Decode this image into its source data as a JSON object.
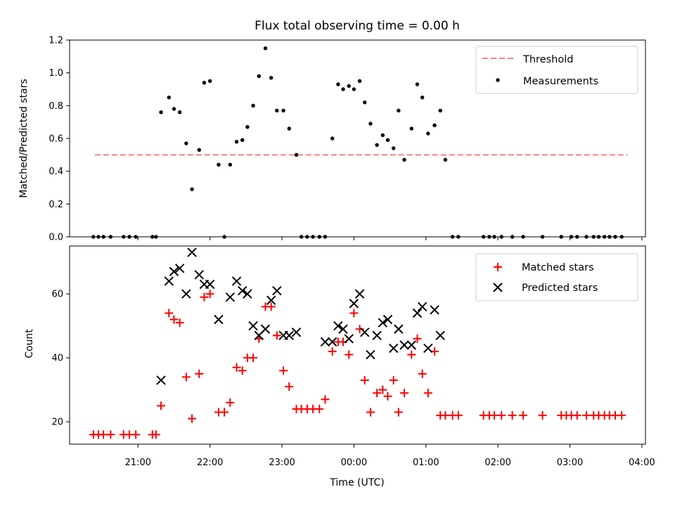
{
  "chart_data": [
    {
      "type": "scatter",
      "title": "Flux total observing time = 0.00 h",
      "ylabel": "Matched/Predicted stars",
      "xlabel": "",
      "xlim": [
        20.05,
        28.05
      ],
      "ylim": [
        0,
        1.2
      ],
      "yticks": [
        0,
        0.2,
        0.4,
        0.6,
        0.8,
        1.0,
        1.2
      ],
      "ytick_labels": [
        "0.0",
        "0.2",
        "0.4",
        "0.6",
        "0.8",
        "1.0",
        "1.2"
      ],
      "xticks": [
        21,
        22,
        23,
        24,
        25,
        26,
        27,
        28
      ],
      "grid": false,
      "legend_position": "top-right",
      "threshold": {
        "name": "Threshold",
        "value": 0.5,
        "x_range": [
          20.4,
          27.8
        ],
        "color": "#ff7f7f"
      },
      "measurements": {
        "name": "Measurements",
        "color": "#000000",
        "points": [
          [
            20.38,
            0
          ],
          [
            20.45,
            0
          ],
          [
            20.52,
            0
          ],
          [
            20.62,
            0
          ],
          [
            20.8,
            0
          ],
          [
            20.88,
            0
          ],
          [
            20.97,
            0
          ],
          [
            21.2,
            0
          ],
          [
            21.25,
            0
          ],
          [
            21.32,
            0.76
          ],
          [
            21.43,
            0.85
          ],
          [
            21.5,
            0.78
          ],
          [
            21.58,
            0.76
          ],
          [
            21.67,
            0.57
          ],
          [
            21.75,
            0.29
          ],
          [
            21.85,
            0.53
          ],
          [
            21.92,
            0.94
          ],
          [
            22.0,
            0.95
          ],
          [
            22.12,
            0.44
          ],
          [
            22.2,
            0
          ],
          [
            22.28,
            0.44
          ],
          [
            22.37,
            0.58
          ],
          [
            22.45,
            0.59
          ],
          [
            22.52,
            0.67
          ],
          [
            22.6,
            0.8
          ],
          [
            22.68,
            0.98
          ],
          [
            22.77,
            1.15
          ],
          [
            22.85,
            0.97
          ],
          [
            22.93,
            0.77
          ],
          [
            23.02,
            0.77
          ],
          [
            23.1,
            0.66
          ],
          [
            23.2,
            0.5
          ],
          [
            23.27,
            0
          ],
          [
            23.35,
            0
          ],
          [
            23.43,
            0
          ],
          [
            23.52,
            0
          ],
          [
            23.6,
            0
          ],
          [
            23.7,
            0.6
          ],
          [
            23.78,
            0.93
          ],
          [
            23.85,
            0.9
          ],
          [
            23.93,
            0.92
          ],
          [
            24.0,
            0.9
          ],
          [
            24.08,
            0.95
          ],
          [
            24.15,
            0.82
          ],
          [
            24.23,
            0.69
          ],
          [
            24.32,
            0.56
          ],
          [
            24.4,
            0.62
          ],
          [
            24.47,
            0.59
          ],
          [
            24.55,
            0.54
          ],
          [
            24.62,
            0.77
          ],
          [
            24.7,
            0.47
          ],
          [
            24.8,
            0.66
          ],
          [
            24.88,
            0.93
          ],
          [
            24.95,
            0.85
          ],
          [
            25.03,
            0.63
          ],
          [
            25.12,
            0.68
          ],
          [
            25.2,
            0.77
          ],
          [
            25.27,
            0.47
          ],
          [
            25.37,
            0
          ],
          [
            25.45,
            0
          ],
          [
            25.8,
            0
          ],
          [
            25.88,
            0
          ],
          [
            25.95,
            0
          ],
          [
            26.05,
            0
          ],
          [
            26.2,
            0
          ],
          [
            26.35,
            0
          ],
          [
            26.62,
            0
          ],
          [
            26.88,
            0
          ],
          [
            27.02,
            0
          ],
          [
            27.1,
            0
          ],
          [
            27.23,
            0
          ],
          [
            27.33,
            0
          ],
          [
            27.4,
            0
          ],
          [
            27.48,
            0
          ],
          [
            27.55,
            0
          ],
          [
            27.63,
            0
          ],
          [
            27.72,
            0
          ]
        ]
      }
    },
    {
      "type": "scatter",
      "title": "",
      "ylabel": "Count",
      "xlabel": "Time (UTC)",
      "xlim": [
        20.05,
        28.05
      ],
      "ylim": [
        13,
        75
      ],
      "yticks": [
        20,
        40,
        60
      ],
      "ytick_labels": [
        "20",
        "40",
        "60"
      ],
      "xticks": [
        21,
        22,
        23,
        24,
        25,
        26,
        27,
        28
      ],
      "xtick_labels": [
        "21:00",
        "22:00",
        "23:00",
        "00:00",
        "01:00",
        "02:00",
        "03:00",
        "04:00"
      ],
      "grid": false,
      "legend_position": "top-right",
      "series": [
        {
          "name": "Matched stars",
          "marker": "plus",
          "color": "#ff0000",
          "points": [
            [
              20.38,
              16
            ],
            [
              20.45,
              16
            ],
            [
              20.52,
              16
            ],
            [
              20.62,
              16
            ],
            [
              20.8,
              16
            ],
            [
              20.88,
              16
            ],
            [
              20.97,
              16
            ],
            [
              21.2,
              16
            ],
            [
              21.25,
              16
            ],
            [
              21.32,
              25
            ],
            [
              21.43,
              54
            ],
            [
              21.5,
              52
            ],
            [
              21.58,
              51
            ],
            [
              21.67,
              34
            ],
            [
              21.75,
              21
            ],
            [
              21.85,
              35
            ],
            [
              21.92,
              59
            ],
            [
              22.0,
              60
            ],
            [
              22.12,
              23
            ],
            [
              22.2,
              23
            ],
            [
              22.28,
              26
            ],
            [
              22.37,
              37
            ],
            [
              22.45,
              36
            ],
            [
              22.52,
              40
            ],
            [
              22.6,
              40
            ],
            [
              22.68,
              46
            ],
            [
              22.77,
              56
            ],
            [
              22.85,
              56
            ],
            [
              22.93,
              47
            ],
            [
              23.02,
              36
            ],
            [
              23.1,
              31
            ],
            [
              23.2,
              24
            ],
            [
              23.27,
              24
            ],
            [
              23.35,
              24
            ],
            [
              23.43,
              24
            ],
            [
              23.52,
              24
            ],
            [
              23.6,
              27
            ],
            [
              23.7,
              42
            ],
            [
              23.78,
              45
            ],
            [
              23.85,
              45
            ],
            [
              23.93,
              41
            ],
            [
              24.0,
              54
            ],
            [
              24.08,
              49
            ],
            [
              24.15,
              33
            ],
            [
              24.23,
              23
            ],
            [
              24.32,
              29
            ],
            [
              24.4,
              30
            ],
            [
              24.47,
              28
            ],
            [
              24.55,
              33
            ],
            [
              24.62,
              23
            ],
            [
              24.7,
              29
            ],
            [
              24.8,
              41
            ],
            [
              24.88,
              46
            ],
            [
              24.95,
              35
            ],
            [
              25.03,
              29
            ],
            [
              25.12,
              42
            ],
            [
              25.2,
              22
            ],
            [
              25.27,
              22
            ],
            [
              25.37,
              22
            ],
            [
              25.45,
              22
            ],
            [
              25.8,
              22
            ],
            [
              25.88,
              22
            ],
            [
              25.95,
              22
            ],
            [
              26.05,
              22
            ],
            [
              26.2,
              22
            ],
            [
              26.35,
              22
            ],
            [
              26.62,
              22
            ],
            [
              26.88,
              22
            ],
            [
              26.95,
              22
            ],
            [
              27.02,
              22
            ],
            [
              27.1,
              22
            ],
            [
              27.23,
              22
            ],
            [
              27.33,
              22
            ],
            [
              27.4,
              22
            ],
            [
              27.48,
              22
            ],
            [
              27.55,
              22
            ],
            [
              27.63,
              22
            ],
            [
              27.72,
              22
            ]
          ]
        },
        {
          "name": "Predicted stars",
          "marker": "x",
          "color": "#000000",
          "points": [
            [
              21.32,
              33
            ],
            [
              21.43,
              64
            ],
            [
              21.5,
              67
            ],
            [
              21.58,
              68
            ],
            [
              21.67,
              60
            ],
            [
              21.75,
              73
            ],
            [
              21.85,
              66
            ],
            [
              21.92,
              63
            ],
            [
              22.0,
              63
            ],
            [
              22.12,
              52
            ],
            [
              22.28,
              59
            ],
            [
              22.37,
              64
            ],
            [
              22.45,
              61
            ],
            [
              22.52,
              60
            ],
            [
              22.6,
              50
            ],
            [
              22.68,
              47
            ],
            [
              22.77,
              49
            ],
            [
              22.85,
              58
            ],
            [
              22.93,
              61
            ],
            [
              23.02,
              47
            ],
            [
              23.1,
              47
            ],
            [
              23.2,
              48
            ],
            [
              23.6,
              45
            ],
            [
              23.7,
              45
            ],
            [
              23.78,
              50
            ],
            [
              23.85,
              49
            ],
            [
              23.93,
              46
            ],
            [
              24.0,
              57
            ],
            [
              24.08,
              60
            ],
            [
              24.15,
              48
            ],
            [
              24.23,
              41
            ],
            [
              24.32,
              47
            ],
            [
              24.4,
              51
            ],
            [
              24.47,
              52
            ],
            [
              24.55,
              43
            ],
            [
              24.62,
              49
            ],
            [
              24.7,
              44
            ],
            [
              24.8,
              44
            ],
            [
              24.88,
              54
            ],
            [
              24.95,
              56
            ],
            [
              25.03,
              43
            ],
            [
              25.12,
              55
            ],
            [
              25.2,
              47
            ]
          ]
        }
      ]
    }
  ]
}
